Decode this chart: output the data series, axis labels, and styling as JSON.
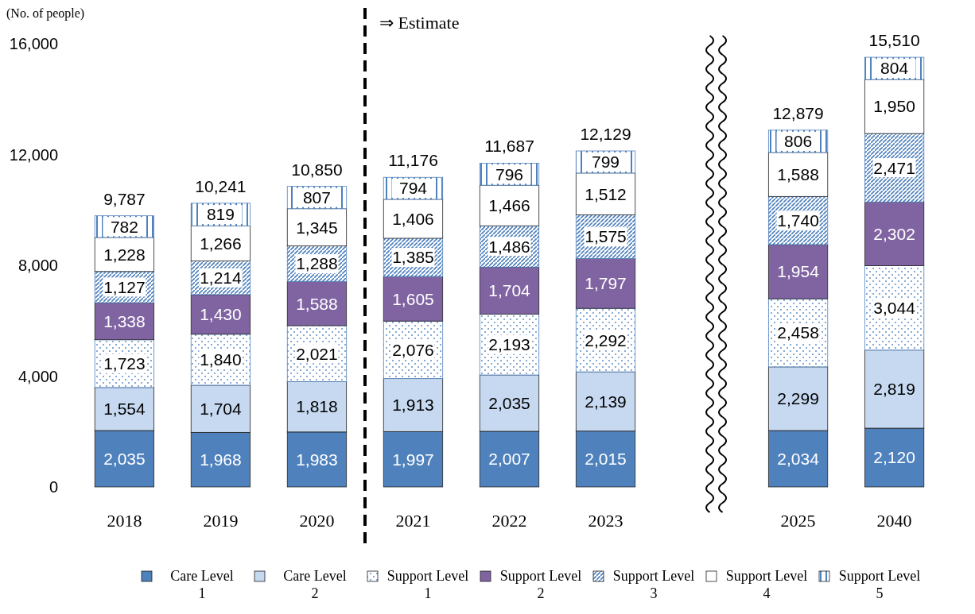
{
  "chart_data": {
    "type": "bar",
    "stacked": true,
    "ylabel": "(No. of people)",
    "categories": [
      "2018",
      "2019",
      "2020",
      "2021",
      "2022",
      "2023",
      null,
      "2025",
      "2040"
    ],
    "series": [
      {
        "name": "Care Level 1",
        "color": "#4f81bd",
        "values": [
          2035,
          1968,
          1983,
          1997,
          2007,
          2015,
          null,
          2034,
          2120
        ],
        "value_labels": [
          "2,035",
          "1,968",
          "1,983",
          "1,997",
          "2,007",
          "2,015",
          null,
          "2,034",
          "2,120"
        ]
      },
      {
        "name": "Care Level 2",
        "color": "#c6d9f1",
        "values": [
          1554,
          1704,
          1818,
          1913,
          2035,
          2139,
          null,
          2299,
          2819
        ],
        "value_labels": [
          "1,554",
          "1,704",
          "1,818",
          "1,913",
          "2,035",
          "2,139",
          null,
          "2,299",
          "2,819"
        ]
      },
      {
        "name": "Support Level 1",
        "color": "#4f81bd",
        "values": [
          1723,
          1840,
          2021,
          2076,
          2193,
          2292,
          null,
          2458,
          3044
        ],
        "value_labels": [
          "1,723",
          "1,840",
          "2,021",
          "2,076",
          "2,193",
          "2,292",
          null,
          "2,458",
          "3,044"
        ]
      },
      {
        "name": "Support Level 2",
        "color": "#8064a2",
        "values": [
          1338,
          1430,
          1588,
          1605,
          1704,
          1797,
          null,
          1954,
          2302
        ],
        "value_labels": [
          "1,338",
          "1,430",
          "1,588",
          "1,605",
          "1,704",
          "1,797",
          null,
          "1,954",
          "2,302"
        ]
      },
      {
        "name": "Support Level 3",
        "color": "#4f81bd",
        "values": [
          1127,
          1214,
          1288,
          1385,
          1486,
          1575,
          null,
          1740,
          2471
        ],
        "value_labels": [
          "1,127",
          "1,214",
          "1,288",
          "1,385",
          "1,486",
          "1,575",
          null,
          "1,740",
          "2,471"
        ]
      },
      {
        "name": "Support Level 4",
        "color": "#ffffff",
        "values": [
          1228,
          1266,
          1345,
          1406,
          1466,
          1512,
          null,
          1588,
          1950
        ],
        "value_labels": [
          "1,228",
          "1,266",
          "1,345",
          "1,406",
          "1,466",
          "1,512",
          null,
          "1,588",
          "1,950"
        ]
      },
      {
        "name": "Support Level 5",
        "color": "#4f81bd",
        "values": [
          782,
          819,
          807,
          794,
          796,
          799,
          null,
          806,
          804
        ],
        "value_labels": [
          "782",
          "819",
          "807",
          "794",
          "796",
          "799",
          null,
          "806",
          "804"
        ]
      }
    ],
    "totals": [
      "9,787",
      "10,241",
      "10,850",
      "11,176",
      "11,687",
      "12,129",
      null,
      "12,879",
      "15,510"
    ],
    "ylim": [
      0,
      16000
    ],
    "yticks": [
      {
        "value": 0,
        "label": "0"
      },
      {
        "value": 4000,
        "label": "4,000"
      },
      {
        "value": 8000,
        "label": "8,000"
      },
      {
        "value": 12000,
        "label": "12,000"
      },
      {
        "value": 16000,
        "label": "16,000"
      }
    ],
    "annotations": [
      "⇒  Estimate"
    ],
    "grid": false,
    "legend": "bottom"
  }
}
